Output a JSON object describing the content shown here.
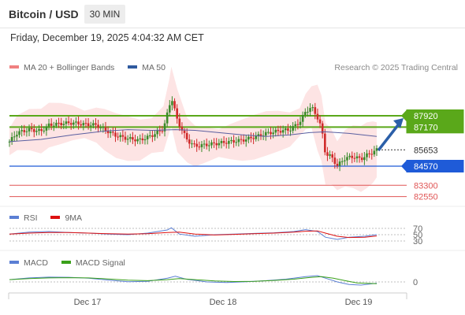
{
  "header": {
    "title": "Bitcoin / USD",
    "timeframe": "30 MIN",
    "timestamp": "Friday, December 19, 2025 4:04:32 AM CET"
  },
  "legend": {
    "items": [
      {
        "label": "MA 20 + Bollinger Bands",
        "color": "#f08080"
      },
      {
        "label": "MA 50",
        "color": "#2f5a9e"
      }
    ],
    "credit": "Research © 2025 Trading Central"
  },
  "rsi_legend": {
    "items": [
      {
        "label": "RSI",
        "color": "#5b7fd4"
      },
      {
        "label": "9MA",
        "color": "#dd1111"
      }
    ]
  },
  "macd_legend": {
    "items": [
      {
        "label": "MACD",
        "color": "#5b7fd4"
      },
      {
        "label": "MACD Signal",
        "color": "#3aa01a"
      }
    ]
  },
  "colors": {
    "resistance": "#5aa81a",
    "current": "#333333",
    "pivot": "#1f5bd8",
    "support": "#e05555",
    "bullish": "#3a8a2a",
    "bearish": "#d02a2a",
    "band_fill": "#fcd9d9",
    "arrow": "#2b5fa8"
  },
  "chart_data": [
    {
      "type": "line",
      "title": "Bitcoin / USD",
      "subtitle": "30 MIN",
      "x_tick_labels": [
        "Dec 17",
        "Dec 18",
        "Dec 19"
      ],
      "y_tick_labels": [],
      "levels": [
        {
          "value": 87920,
          "label": "87920",
          "role": "resistance"
        },
        {
          "value": 87170,
          "label": "87170",
          "role": "resistance"
        },
        {
          "value": 85653,
          "label": "85653",
          "role": "current"
        },
        {
          "value": 84570,
          "label": "84570",
          "role": "pivot"
        },
        {
          "value": 83300,
          "label": "83300",
          "role": "support"
        },
        {
          "value": 82550,
          "label": "82550",
          "role": "support"
        }
      ],
      "series": [
        {
          "name": "price",
          "points": [
            [
              0,
              86200
            ],
            [
              0.02,
              86800
            ],
            [
              0.05,
              87000
            ],
            [
              0.08,
              86900
            ],
            [
              0.1,
              87300
            ],
            [
              0.13,
              87400
            ],
            [
              0.16,
              87450
            ],
            [
              0.19,
              87350
            ],
            [
              0.22,
              87300
            ],
            [
              0.24,
              87000
            ],
            [
              0.27,
              86600
            ],
            [
              0.3,
              86400
            ],
            [
              0.33,
              86300
            ],
            [
              0.36,
              86600
            ],
            [
              0.39,
              87050
            ],
            [
              0.405,
              88600
            ],
            [
              0.41,
              89200
            ],
            [
              0.425,
              87600
            ],
            [
              0.45,
              86300
            ],
            [
              0.47,
              85900
            ],
            [
              0.5,
              86000
            ],
            [
              0.53,
              86100
            ],
            [
              0.56,
              86200
            ],
            [
              0.59,
              86300
            ],
            [
              0.62,
              86500
            ],
            [
              0.65,
              86750
            ],
            [
              0.68,
              86900
            ],
            [
              0.71,
              87000
            ],
            [
              0.735,
              87500
            ],
            [
              0.75,
              88200
            ],
            [
              0.765,
              88500
            ],
            [
              0.78,
              87800
            ],
            [
              0.79,
              87100
            ],
            [
              0.8,
              85400
            ],
            [
              0.815,
              85200
            ],
            [
              0.83,
              84600
            ],
            [
              0.85,
              85100
            ],
            [
              0.87,
              85200
            ],
            [
              0.89,
              85050
            ],
            [
              0.905,
              85300
            ],
            [
              0.92,
              85500
            ],
            [
              0.93,
              85653
            ]
          ]
        },
        {
          "name": "MA 50",
          "points": [
            [
              0,
              86200
            ],
            [
              0.08,
              86350
            ],
            [
              0.16,
              86650
            ],
            [
              0.24,
              86900
            ],
            [
              0.3,
              87000
            ],
            [
              0.36,
              86950
            ],
            [
              0.42,
              87000
            ],
            [
              0.47,
              86950
            ],
            [
              0.53,
              86800
            ],
            [
              0.59,
              86650
            ],
            [
              0.65,
              86550
            ],
            [
              0.71,
              86650
            ],
            [
              0.76,
              86800
            ],
            [
              0.8,
              86850
            ],
            [
              0.86,
              86750
            ],
            [
              0.93,
              86550
            ]
          ]
        }
      ]
    },
    {
      "type": "line",
      "title": "RSI",
      "y_tick_labels": [
        "70",
        "50",
        "30"
      ],
      "ylim": [
        0,
        100
      ],
      "series": [
        {
          "name": "RSI",
          "points": [
            [
              0,
              52
            ],
            [
              0.05,
              58
            ],
            [
              0.1,
              60
            ],
            [
              0.15,
              57
            ],
            [
              0.2,
              55
            ],
            [
              0.25,
              52
            ],
            [
              0.3,
              50
            ],
            [
              0.35,
              55
            ],
            [
              0.4,
              65
            ],
            [
              0.41,
              72
            ],
            [
              0.43,
              52
            ],
            [
              0.47,
              45
            ],
            [
              0.52,
              50
            ],
            [
              0.57,
              52
            ],
            [
              0.62,
              54
            ],
            [
              0.67,
              56
            ],
            [
              0.72,
              60
            ],
            [
              0.75,
              66
            ],
            [
              0.78,
              60
            ],
            [
              0.8,
              42
            ],
            [
              0.83,
              35
            ],
            [
              0.86,
              42
            ],
            [
              0.9,
              45
            ],
            [
              0.93,
              50
            ]
          ]
        },
        {
          "name": "9MA",
          "points": [
            [
              0,
              52
            ],
            [
              0.05,
              55
            ],
            [
              0.1,
              57
            ],
            [
              0.15,
              57
            ],
            [
              0.2,
              55
            ],
            [
              0.25,
              53
            ],
            [
              0.3,
              52
            ],
            [
              0.35,
              53
            ],
            [
              0.4,
              57
            ],
            [
              0.43,
              58
            ],
            [
              0.47,
              52
            ],
            [
              0.52,
              49
            ],
            [
              0.57,
              51
            ],
            [
              0.62,
              53
            ],
            [
              0.67,
              55
            ],
            [
              0.72,
              58
            ],
            [
              0.75,
              61
            ],
            [
              0.78,
              62
            ],
            [
              0.8,
              55
            ],
            [
              0.83,
              45
            ],
            [
              0.86,
              41
            ],
            [
              0.9,
              42
            ],
            [
              0.93,
              46
            ]
          ]
        }
      ]
    },
    {
      "type": "line",
      "title": "MACD",
      "y_tick_labels": [
        "0"
      ],
      "ylim": [
        -1,
        1
      ],
      "series": [
        {
          "name": "MACD",
          "points": [
            [
              0,
              0.18
            ],
            [
              0.05,
              0.32
            ],
            [
              0.1,
              0.38
            ],
            [
              0.15,
              0.37
            ],
            [
              0.2,
              0.3
            ],
            [
              0.25,
              0.15
            ],
            [
              0.3,
              0.02
            ],
            [
              0.35,
              0.05
            ],
            [
              0.4,
              0.3
            ],
            [
              0.42,
              0.45
            ],
            [
              0.45,
              0.2
            ],
            [
              0.5,
              0.0
            ],
            [
              0.55,
              -0.05
            ],
            [
              0.6,
              0.02
            ],
            [
              0.65,
              0.1
            ],
            [
              0.7,
              0.22
            ],
            [
              0.75,
              0.42
            ],
            [
              0.78,
              0.5
            ],
            [
              0.8,
              0.3
            ],
            [
              0.83,
              0.0
            ],
            [
              0.86,
              -0.2
            ],
            [
              0.89,
              -0.25
            ],
            [
              0.93,
              -0.1
            ]
          ]
        },
        {
          "name": "MACD Signal",
          "points": [
            [
              0,
              0.18
            ],
            [
              0.05,
              0.26
            ],
            [
              0.1,
              0.32
            ],
            [
              0.15,
              0.34
            ],
            [
              0.2,
              0.32
            ],
            [
              0.25,
              0.24
            ],
            [
              0.3,
              0.14
            ],
            [
              0.35,
              0.1
            ],
            [
              0.4,
              0.18
            ],
            [
              0.43,
              0.26
            ],
            [
              0.47,
              0.18
            ],
            [
              0.52,
              0.08
            ],
            [
              0.57,
              0.03
            ],
            [
              0.62,
              0.05
            ],
            [
              0.67,
              0.12
            ],
            [
              0.72,
              0.22
            ],
            [
              0.76,
              0.35
            ],
            [
              0.79,
              0.42
            ],
            [
              0.82,
              0.3
            ],
            [
              0.85,
              0.1
            ],
            [
              0.88,
              -0.08
            ],
            [
              0.93,
              -0.14
            ]
          ]
        }
      ]
    }
  ]
}
